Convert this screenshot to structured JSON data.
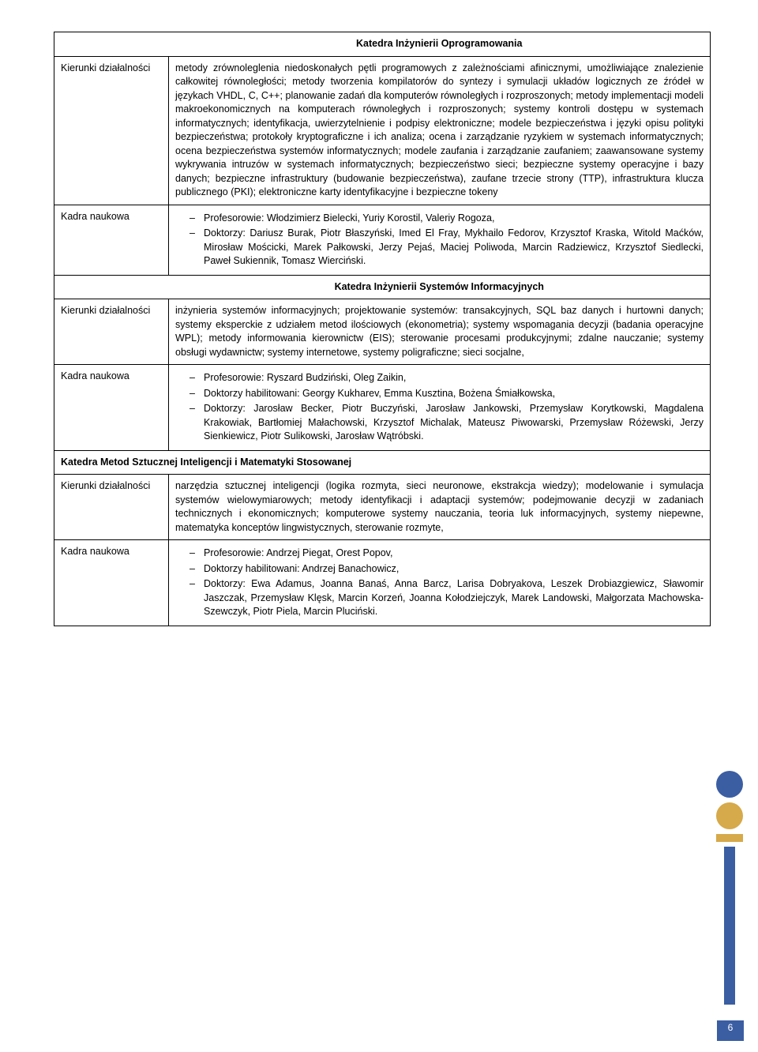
{
  "labels": {
    "kierunki": "Kierunki działalności",
    "kadra": "Kadra naukowa"
  },
  "section1": {
    "title": "Katedra Inżynierii Oprogramowania",
    "body": "metody zrównoleglenia niedoskonałych pętli programowych z zależnościami afinicznymi, umożliwiające znalezienie całkowitej równoległości; metody tworzenia kompilatorów do syntezy i symulacji układów logicznych ze źródeł w językach VHDL, C, C++; planowanie zadań dla komputerów równoległych i rozproszonych; metody implementacji modeli makroekonomicznych na komputerach równoległych i rozproszonych; systemy kontroli dostępu w systemach informatycznych; identyfikacja, uwierzytelnienie i podpisy elektroniczne; modele bezpieczeństwa i języki opisu polityki bezpieczeństwa; protokoły kryptograficzne i ich analiza; ocena i zarządzanie ryzykiem w systemach informatycznych; ocena bezpieczeństwa systemów informatycznych; modele zaufania i zarządzanie zaufaniem; zaawansowane systemy wykrywania intruzów w systemach informatycznych; bezpieczeństwo sieci; bezpieczne systemy operacyjne i bazy danych; bezpieczne infrastruktury (budowanie bezpieczeństwa), zaufane trzecie strony (TTP), infrastruktura klucza publicznego (PKI); elektroniczne karty identyfikacyjne i bezpieczne tokeny",
    "kadra": [
      "Profesorowie: Włodzimierz Bielecki,  Yuriy Korostil,  Valeriy Rogoza,",
      "Doktorzy: Dariusz Burak,  Piotr Błaszyński,  Imed El Fray, Mykhailo Fedorov, Krzysztof Kraska,  Witold Maćków,  Mirosław Mościcki,  Marek Pałkowski,  Jerzy Pejaś, Maciej Poliwoda, Marcin Radziewicz,  Krzysztof Siedlecki, Paweł Sukiennik,  Tomasz Wierciński."
    ]
  },
  "section2": {
    "title": "Katedra Inżynierii Systemów Informacyjnych",
    "body": "inżynieria systemów informacyjnych; projektowanie systemów: transakcyjnych, SQL baz danych i hurtowni danych; systemy eksperckie z udziałem metod ilościowych (ekonometria); systemy wspomagania decyzji (badania operacyjne WPL); metody informowania kierownictw (EIS); sterowanie procesami produkcyjnymi; zdalne nauczanie; systemy obsługi wydawnictw; systemy internetowe, systemy poligraficzne; sieci socjalne,",
    "kadra": [
      "Profesorowie: Ryszard Budziński,  Oleg Zaikin,",
      "Doktorzy habilitowani: Georgy Kukharev,  Emma Kusztina,  Bożena Śmiałkowska,",
      "Doktorzy: Jarosław Becker, Piotr Buczyński,  Jarosław Jankowski, Przemysław Korytkowski, Magdalena Krakowiak, Bartłomiej Małachowski,  Krzysztof Michalak, Mateusz Piwowarski,  Przemysław Różewski, Jerzy Sienkiewicz,  Piotr Sulikowski,  Jarosław Wątróbski."
    ]
  },
  "section3": {
    "title": "Katedra Metod Sztucznej Inteligencji i Matematyki Stosowanej",
    "body": "narzędzia sztucznej inteligencji (logika rozmyta, sieci neuronowe, ekstrakcja wiedzy); modelowanie i symulacja systemów wielowymiarowych; metody identyfikacji i adaptacji systemów; podejmowanie decyzji w zadaniach technicznych i ekonomicznych; komputerowe systemy nauczania, teoria luk informacyjnych, systemy niepewne, matematyka konceptów lingwistycznych, sterowanie rozmyte,",
    "kadra": [
      "Profesorowie: Andrzej Piegat,  Orest Popov,",
      "Doktorzy habilitowani: Andrzej Banachowicz,",
      "Doktorzy: Ewa Adamus,  Joanna Banaś,  Anna Barcz,  Larisa Dobryakova, Leszek Drobiazgiewicz,  Sławomir Jaszczak, Przemysław Klęsk,  Marcin Korzeń,  Joanna Kołodziejczyk, Marek Landowski, Małgorzata Machowska-Szewczyk, Piotr Piela,  Marcin Pluciński."
    ]
  },
  "page_number": "6"
}
